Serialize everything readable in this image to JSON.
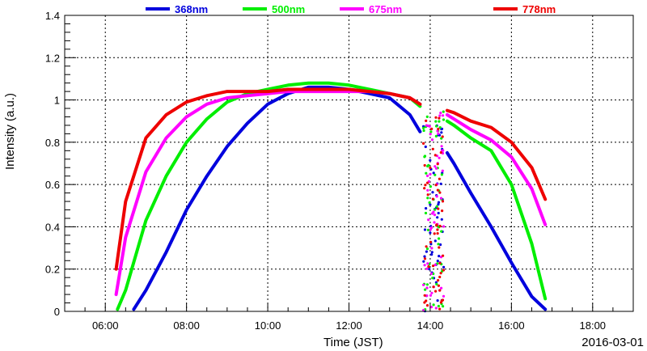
{
  "chart_data": {
    "type": "scatter",
    "title": "",
    "xlabel": "Time (JST)",
    "ylabel": "Intensity (a.u.)",
    "date_label": "2016-03-01",
    "xlim": [
      "05:00",
      "19:00"
    ],
    "ylim": [
      0,
      1.4
    ],
    "grid": true,
    "legend_position": "top",
    "x_ticks": [
      "06:00",
      "08:00",
      "10:00",
      "12:00",
      "14:00",
      "16:00",
      "18:00"
    ],
    "y_ticks": [
      "0",
      "0.2",
      "0.4",
      "0.6",
      "0.8",
      "1",
      "1.2",
      "1.4"
    ],
    "series": [
      {
        "name": "368nm",
        "color": "#0000dd",
        "x": [
          "06:42",
          "07:00",
          "07:30",
          "08:00",
          "08:30",
          "09:00",
          "09:30",
          "10:00",
          "10:30",
          "11:00",
          "11:30",
          "12:00",
          "12:30",
          "13:00",
          "13:30",
          "13:45",
          "14:25",
          "14:35",
          "15:00",
          "15:30",
          "16:00",
          "16:30",
          "16:50"
        ],
        "y": [
          0.01,
          0.1,
          0.28,
          0.48,
          0.64,
          0.78,
          0.89,
          0.98,
          1.03,
          1.06,
          1.06,
          1.05,
          1.03,
          1.01,
          0.93,
          0.85,
          0.75,
          0.7,
          0.56,
          0.4,
          0.23,
          0.07,
          0.01
        ]
      },
      {
        "name": "500nm",
        "color": "#00ee00",
        "x": [
          "06:18",
          "06:30",
          "07:00",
          "07:30",
          "08:00",
          "08:30",
          "09:00",
          "09:30",
          "10:00",
          "10:30",
          "11:00",
          "11:30",
          "12:00",
          "12:30",
          "13:00",
          "13:30",
          "13:45",
          "14:25",
          "14:35",
          "15:00",
          "15:30",
          "16:00",
          "16:30",
          "16:50"
        ],
        "y": [
          0.01,
          0.1,
          0.43,
          0.64,
          0.8,
          0.91,
          0.99,
          1.03,
          1.05,
          1.07,
          1.08,
          1.08,
          1.07,
          1.05,
          1.03,
          1.01,
          0.97,
          0.9,
          0.88,
          0.82,
          0.76,
          0.6,
          0.32,
          0.06
        ]
      },
      {
        "name": "675nm",
        "color": "#ff00ff",
        "x": [
          "06:16",
          "06:30",
          "07:00",
          "07:30",
          "08:00",
          "08:30",
          "09:00",
          "09:30",
          "10:00",
          "10:30",
          "11:00",
          "11:30",
          "12:00",
          "12:30",
          "13:00",
          "13:30",
          "13:45",
          "14:25",
          "14:35",
          "15:00",
          "15:30",
          "16:00",
          "16:30",
          "16:50"
        ],
        "y": [
          0.08,
          0.35,
          0.66,
          0.82,
          0.92,
          0.98,
          1.01,
          1.02,
          1.03,
          1.04,
          1.04,
          1.04,
          1.04,
          1.04,
          1.03,
          1.01,
          0.98,
          0.93,
          0.91,
          0.86,
          0.81,
          0.73,
          0.58,
          0.41
        ]
      },
      {
        "name": "778nm",
        "color": "#ee0000",
        "x": [
          "06:16",
          "06:30",
          "07:00",
          "07:30",
          "08:00",
          "08:30",
          "09:00",
          "09:30",
          "10:00",
          "10:30",
          "11:00",
          "11:30",
          "12:00",
          "12:30",
          "13:00",
          "13:30",
          "13:45",
          "14:25",
          "14:35",
          "15:00",
          "15:30",
          "16:00",
          "16:30",
          "16:50"
        ],
        "y": [
          0.2,
          0.52,
          0.82,
          0.93,
          0.99,
          1.02,
          1.04,
          1.04,
          1.04,
          1.05,
          1.05,
          1.05,
          1.05,
          1.04,
          1.03,
          1.01,
          0.98,
          0.95,
          0.94,
          0.9,
          0.87,
          0.8,
          0.68,
          0.53
        ]
      }
    ]
  }
}
